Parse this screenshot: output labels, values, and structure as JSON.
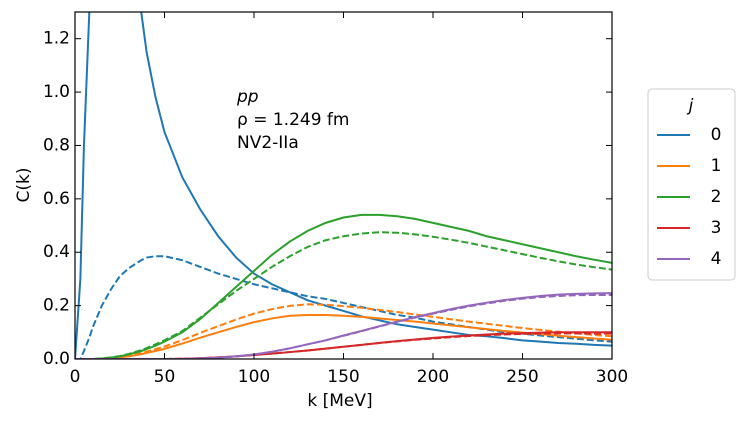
{
  "chart_data": {
    "type": "line",
    "xlabel": "k [MeV]",
    "ylabel": "C(k)",
    "annotations": [
      "pp",
      "ρ = 1.249 fm",
      "NV2-IIa"
    ],
    "legend_title": "j",
    "legend": "outside right",
    "xlim": [
      0,
      300
    ],
    "ylim": [
      0,
      1.3
    ],
    "xticks": [
      0,
      50,
      100,
      150,
      200,
      250,
      300
    ],
    "yticks": [
      {
        "value": 0,
        "label": "0.0"
      },
      0.2,
      0.4,
      0.6,
      0.8,
      {
        "value": 1,
        "label": "1.0"
      },
      1.2
    ],
    "x": [
      0,
      3,
      5,
      8,
      10,
      15,
      20,
      25,
      30,
      37,
      40,
      45,
      50,
      60,
      70,
      80,
      90,
      100,
      110,
      120,
      130,
      140,
      150,
      160,
      170,
      180,
      190,
      200,
      210,
      220,
      230,
      240,
      250,
      260,
      270,
      280,
      290,
      300
    ],
    "series": [
      {
        "name": "0",
        "color": "#1f77b4",
        "values": [
          0,
          0.3,
          0.8,
          1.3,
          null,
          null,
          null,
          null,
          null,
          1.3,
          1.15,
          0.98,
          0.85,
          0.68,
          0.56,
          0.46,
          0.38,
          0.32,
          0.28,
          0.25,
          0.22,
          0.2,
          0.18,
          0.16,
          0.145,
          0.13,
          0.12,
          0.11,
          0.1,
          0.09,
          0.085,
          0.078,
          0.07,
          0.065,
          0.06,
          0.057,
          0.053,
          0.05
        ]
      },
      {
        "color": "#1f77b4",
        "dashed": true,
        "values": [
          0,
          0,
          0.03,
          0.08,
          0.12,
          0.2,
          0.26,
          0.31,
          0.34,
          0.37,
          0.38,
          0.385,
          0.385,
          0.37,
          0.345,
          0.32,
          0.3,
          0.28,
          0.265,
          0.25,
          0.235,
          0.225,
          0.21,
          0.195,
          0.18,
          0.165,
          0.155,
          0.14,
          0.13,
          0.12,
          0.11,
          0.1,
          0.095,
          0.088,
          0.082,
          0.076,
          0.07,
          0.065
        ]
      },
      {
        "name": "1",
        "color": "#ff7f0e",
        "values": [
          0,
          0,
          0,
          0,
          0,
          0.001,
          0.003,
          0.006,
          0.01,
          0.018,
          0.023,
          0.03,
          0.038,
          0.058,
          0.08,
          0.1,
          0.12,
          0.138,
          0.152,
          0.162,
          0.165,
          0.165,
          0.162,
          0.158,
          0.152,
          0.146,
          0.14,
          0.133,
          0.126,
          0.119,
          0.112,
          0.105,
          0.099,
          0.093,
          0.087,
          0.082,
          0.077,
          0.072
        ]
      },
      {
        "color": "#ff7f0e",
        "dashed": true,
        "values": [
          0,
          0,
          0,
          0,
          0,
          0.001,
          0.004,
          0.008,
          0.013,
          0.022,
          0.028,
          0.037,
          0.047,
          0.071,
          0.098,
          0.123,
          0.148,
          0.17,
          0.187,
          0.199,
          0.205,
          0.203,
          0.198,
          0.192,
          0.184,
          0.176,
          0.167,
          0.158,
          0.149,
          0.14,
          0.132,
          0.124,
          0.116,
          0.109,
          0.102,
          0.096,
          0.09,
          0.085
        ]
      },
      {
        "name": "2",
        "color": "#2ca02c",
        "values": [
          0,
          0,
          0,
          0,
          0,
          0.002,
          0.005,
          0.01,
          0.017,
          0.03,
          0.037,
          0.05,
          0.065,
          0.1,
          0.15,
          0.21,
          0.27,
          0.33,
          0.39,
          0.44,
          0.48,
          0.51,
          0.53,
          0.54,
          0.54,
          0.535,
          0.525,
          0.51,
          0.495,
          0.48,
          0.46,
          0.445,
          0.43,
          0.415,
          0.4,
          0.385,
          0.372,
          0.36
        ]
      },
      {
        "color": "#2ca02c",
        "dashed": true,
        "values": [
          0,
          0,
          0,
          0,
          0,
          0.002,
          0.006,
          0.011,
          0.019,
          0.033,
          0.041,
          0.055,
          0.07,
          0.105,
          0.155,
          0.205,
          0.255,
          0.3,
          0.345,
          0.385,
          0.42,
          0.445,
          0.46,
          0.47,
          0.475,
          0.473,
          0.467,
          0.458,
          0.447,
          0.435,
          0.421,
          0.407,
          0.393,
          0.379,
          0.366,
          0.354,
          0.344,
          0.335
        ]
      },
      {
        "name": "3",
        "color": "#d62728",
        "values": [
          0,
          0,
          0,
          0,
          0,
          0,
          0,
          0,
          0,
          0,
          0,
          0,
          0,
          0.001,
          0.003,
          0.006,
          0.01,
          0.015,
          0.02,
          0.026,
          0.032,
          0.039,
          0.046,
          0.053,
          0.06,
          0.067,
          0.073,
          0.079,
          0.084,
          0.088,
          0.092,
          0.095,
          0.097,
          0.099,
          0.1,
          0.1,
          0.1,
          0.1
        ]
      },
      {
        "color": "#d62728",
        "dashed": true,
        "values": [
          0,
          0,
          0,
          0,
          0,
          0,
          0,
          0,
          0,
          0,
          0,
          0,
          0,
          0.001,
          0.003,
          0.006,
          0.01,
          0.015,
          0.02,
          0.026,
          0.032,
          0.039,
          0.046,
          0.053,
          0.06,
          0.066,
          0.072,
          0.077,
          0.082,
          0.086,
          0.089,
          0.092,
          0.094,
          0.095,
          0.096,
          0.096,
          0.095,
          0.095
        ]
      },
      {
        "name": "4",
        "color": "#9467bd",
        "values": [
          0,
          0,
          0,
          0,
          0,
          0,
          0,
          0,
          0,
          0,
          0,
          0,
          0,
          0,
          0.002,
          0.005,
          0.01,
          0.017,
          0.027,
          0.04,
          0.055,
          0.07,
          0.088,
          0.105,
          0.123,
          0.14,
          0.157,
          0.172,
          0.187,
          0.2,
          0.211,
          0.221,
          0.229,
          0.236,
          0.241,
          0.244,
          0.246,
          0.247
        ]
      },
      {
        "color": "#9467bd",
        "dashed": true,
        "values": [
          0,
          0,
          0,
          0,
          0,
          0,
          0,
          0,
          0,
          0,
          0,
          0,
          0,
          0,
          0.002,
          0.005,
          0.01,
          0.017,
          0.027,
          0.04,
          0.055,
          0.07,
          0.087,
          0.104,
          0.122,
          0.139,
          0.155,
          0.17,
          0.184,
          0.197,
          0.208,
          0.218,
          0.226,
          0.232,
          0.236,
          0.239,
          0.24,
          0.24
        ]
      }
    ]
  }
}
